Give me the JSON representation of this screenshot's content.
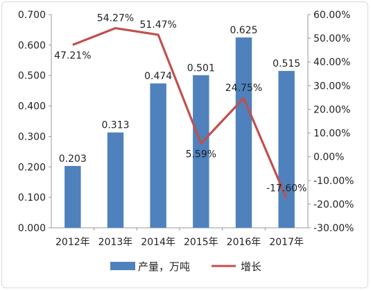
{
  "chart_data": {
    "type": "bar",
    "categories": [
      "2012年",
      "2013年",
      "2014年",
      "2015年",
      "2016年",
      "2017年"
    ],
    "series": [
      {
        "name": "产量，万吨",
        "type": "bar",
        "axis": "left",
        "color": "#4f81bd",
        "values": [
          0.203,
          0.313,
          0.474,
          0.501,
          0.625,
          0.515
        ],
        "labels": [
          "0.203",
          "0.313",
          "0.474",
          "0.501",
          "0.625",
          "0.515"
        ]
      },
      {
        "name": "增长",
        "type": "line",
        "axis": "right",
        "color": "#c0504d",
        "values": [
          47.21,
          54.27,
          51.47,
          5.59,
          24.75,
          -17.6
        ],
        "labels": [
          "47.21%",
          "54.27%",
          "51.47%",
          "5.59%",
          "24.75%",
          "-17.60%"
        ]
      }
    ],
    "y_left": {
      "min": 0,
      "max": 0.7,
      "step": 0.1,
      "ticks": [
        "0.000",
        "0.100",
        "0.200",
        "0.300",
        "0.400",
        "0.500",
        "0.600",
        "0.700"
      ]
    },
    "y_right": {
      "min": -30,
      "max": 60,
      "step": 10,
      "ticks": [
        "-30.00%",
        "-20.00%",
        "-10.00%",
        "0.00%",
        "10.00%",
        "20.00%",
        "30.00%",
        "40.00%",
        "50.00%",
        "60.00%"
      ]
    },
    "grid": false,
    "legend": "bottom"
  }
}
